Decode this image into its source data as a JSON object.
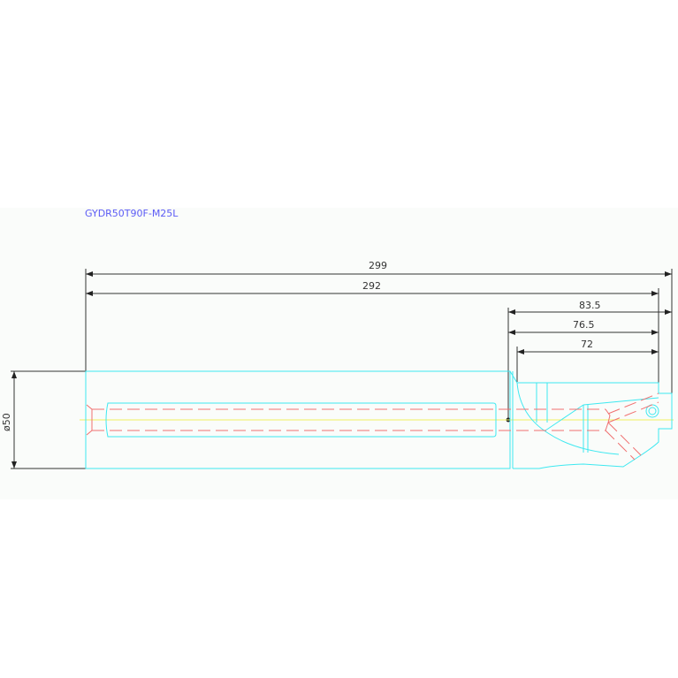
{
  "title": "GYDR50T90F-M25L",
  "dimensions": {
    "overall_length": "299",
    "body_length": "292",
    "d1": "83.5",
    "d2": "76.5",
    "d3": "72",
    "diameter": "ø50"
  },
  "colors": {
    "outline": "#3ee8f0",
    "hidden_lines": "#f07070",
    "centerline": "#f0f060",
    "dimension": "#333333",
    "title": "#5b5bf5"
  }
}
